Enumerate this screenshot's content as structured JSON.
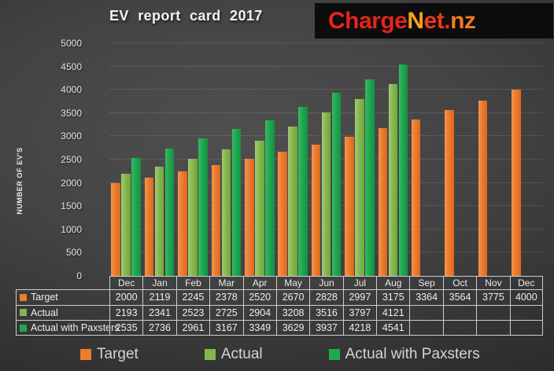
{
  "title": "EV report card 2017",
  "logo": {
    "text": "ChargeNet.nz",
    "background": "#0c0c0c",
    "parts": [
      {
        "text": "Charge",
        "color": "#e6251c"
      },
      {
        "text": "N",
        "color": "#f6a21c"
      },
      {
        "text": "et",
        "color": "#ea3a1d"
      },
      {
        "text": ".",
        "color": "#e6301c"
      },
      {
        "text": "nz",
        "color": "#ef7a20"
      }
    ]
  },
  "chart_data": {
    "type": "bar",
    "title": "EV report card 2017",
    "xlabel": "",
    "ylabel": "NUMBER OF EV'S",
    "ylim": [
      0,
      5000
    ],
    "ytick_step": 500,
    "grid": true,
    "legend_position": "bottom",
    "categories": [
      "Dec",
      "Jan",
      "Feb",
      "Mar",
      "Apr",
      "May",
      "Jun",
      "Jul",
      "Aug",
      "Sep",
      "Oct",
      "Nov",
      "Dec"
    ],
    "series": [
      {
        "name": "Target",
        "color": "#ec7c2e",
        "values": [
          2000,
          2119,
          2245,
          2378,
          2520,
          2670,
          2828,
          2997,
          3175,
          3364,
          3564,
          3775,
          4000
        ]
      },
      {
        "name": "Actual",
        "color": "#84b64e",
        "values": [
          2193,
          2341,
          2523,
          2725,
          2904,
          3208,
          3516,
          3797,
          4121,
          null,
          null,
          null,
          null
        ]
      },
      {
        "name": "Actual with Paxsters",
        "color": "#1ea94f",
        "values": [
          2535,
          2736,
          2961,
          3167,
          3349,
          3629,
          3937,
          4218,
          4541,
          null,
          null,
          null,
          null
        ]
      }
    ]
  }
}
